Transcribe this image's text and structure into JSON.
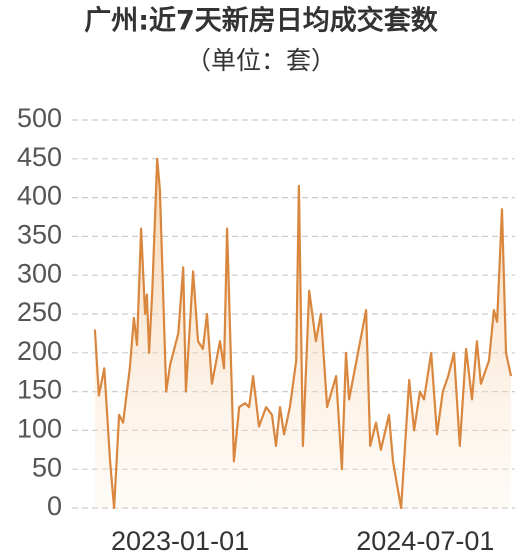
{
  "chart_data": {
    "type": "area",
    "title": "广州:近7天新房日均成交套数",
    "subtitle": "（单位：套）",
    "color": "#d9873f",
    "grid": true,
    "xlim": [
      "2022-05-05",
      "2025-01-17"
    ],
    "xticks": [
      "2023-01-01",
      "2024-07-01"
    ],
    "ylim": [
      0,
      500
    ],
    "yticks": [
      0,
      50,
      100,
      150,
      200,
      250,
      300,
      350,
      400,
      450,
      500
    ],
    "x": [
      "2022-06-25",
      "2022-07-04",
      "2022-07-16",
      "2022-07-29",
      "2022-08-07",
      "2022-08-18",
      "2022-08-27",
      "2022-09-11",
      "2022-09-20",
      "2022-09-27",
      "2022-10-06",
      "2022-10-15",
      "2022-10-19",
      "2022-10-24",
      "2022-10-31",
      "2022-11-11",
      "2022-11-17",
      "2022-12-01",
      "2022-12-10",
      "2022-12-28",
      "2023-01-08",
      "2023-01-14",
      "2023-01-30",
      "2023-02-10",
      "2023-02-21",
      "2023-03-02",
      "2023-03-13",
      "2023-03-31",
      "2023-04-09",
      "2023-04-16",
      "2023-05-01",
      "2023-05-13",
      "2023-05-26",
      "2023-06-04",
      "2023-06-13",
      "2023-06-26",
      "2023-07-12",
      "2023-07-25",
      "2023-08-03",
      "2023-08-12",
      "2023-08-21",
      "2023-09-03",
      "2023-09-17",
      "2023-09-23",
      "2023-10-02",
      "2023-10-16",
      "2023-10-31",
      "2023-11-11",
      "2023-11-25",
      "2023-12-15",
      "2023-12-28",
      "2024-01-06",
      "2024-01-13",
      "2024-02-20",
      "2024-02-29",
      "2024-03-13",
      "2024-03-24",
      "2024-04-11",
      "2024-04-20",
      "2024-05-08",
      "2024-05-26",
      "2024-06-06",
      "2024-06-19",
      "2024-06-28",
      "2024-07-14",
      "2024-07-27",
      "2024-08-09",
      "2024-08-21",
      "2024-09-03",
      "2024-09-16",
      "2024-09-30",
      "2024-10-13",
      "2024-10-24",
      "2024-11-02",
      "2024-11-20",
      "2024-12-01",
      "2024-12-08",
      "2024-12-19",
      "2024-12-28",
      "2025-01-08"
    ],
    "values": [
      230,
      145,
      180,
      60,
      0,
      120,
      110,
      180,
      245,
      210,
      360,
      250,
      275,
      200,
      280,
      450,
      410,
      150,
      185,
      225,
      310,
      150,
      305,
      215,
      205,
      250,
      160,
      215,
      180,
      360,
      60,
      130,
      135,
      130,
      170,
      105,
      130,
      120,
      80,
      130,
      95,
      130,
      190,
      415,
      80,
      280,
      215,
      250,
      130,
      170,
      50,
      200,
      140,
      255,
      80,
      110,
      75,
      120,
      60,
      0,
      165,
      100,
      150,
      140,
      200,
      95,
      150,
      170,
      200,
      80,
      205,
      140,
      215,
      160,
      190,
      255,
      240,
      385,
      200,
      170
    ]
  }
}
